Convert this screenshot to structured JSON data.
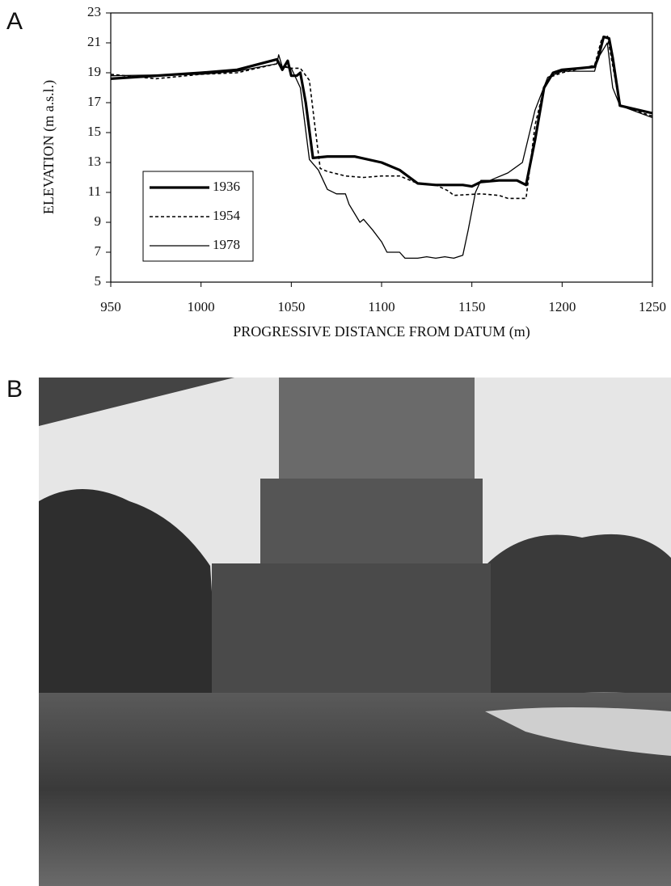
{
  "chart_data": {
    "type": "line",
    "panel_label": "A",
    "xlabel": "PROGRESSIVE DISTANCE FROM DATUM (m)",
    "ylabel": "ELEVATION (m a.s.l.)",
    "xlim": [
      950,
      1250
    ],
    "ylim": [
      5,
      23
    ],
    "xticks": [
      950,
      1000,
      1050,
      1100,
      1150,
      1200,
      1250
    ],
    "yticks": [
      5,
      7,
      9,
      11,
      13,
      15,
      17,
      19,
      21,
      23
    ],
    "legend": "lower left",
    "series": [
      {
        "name": "1936",
        "color": "#000000",
        "style": "thick",
        "x": [
          950,
          1000,
          1020,
          1042,
          1045,
          1048,
          1050,
          1053,
          1055,
          1058,
          1062,
          1070,
          1085,
          1100,
          1110,
          1120,
          1130,
          1145,
          1150,
          1155,
          1165,
          1175,
          1180,
          1185,
          1190,
          1195,
          1200,
          1210,
          1218,
          1220,
          1223,
          1226,
          1228,
          1232,
          1250
        ],
        "values": [
          18.6,
          19.0,
          19.2,
          19.9,
          19.2,
          19.8,
          18.8,
          18.8,
          19.0,
          17.0,
          13.3,
          13.4,
          13.4,
          13.0,
          12.5,
          11.6,
          11.5,
          11.5,
          11.4,
          11.7,
          11.8,
          11.8,
          11.5,
          14.5,
          18.0,
          19.0,
          19.2,
          19.3,
          19.4,
          20.0,
          21.4,
          21.3,
          20.0,
          16.8,
          16.3
        ]
      },
      {
        "name": "1954",
        "color": "#000000",
        "style": "dashed",
        "x": [
          950,
          975,
          1000,
          1020,
          1042,
          1050,
          1055,
          1060,
          1063,
          1066,
          1070,
          1080,
          1090,
          1100,
          1110,
          1120,
          1130,
          1137,
          1140,
          1155,
          1165,
          1170,
          1180,
          1182,
          1185,
          1190,
          1193,
          1200,
          1218,
          1222,
          1225,
          1232,
          1250
        ],
        "values": [
          18.9,
          18.6,
          18.9,
          19.0,
          19.6,
          19.3,
          19.3,
          18.5,
          15.5,
          12.6,
          12.4,
          12.1,
          12.0,
          12.1,
          12.1,
          11.6,
          11.5,
          11.1,
          10.8,
          10.9,
          10.8,
          10.6,
          10.6,
          12.5,
          15.5,
          18.0,
          18.7,
          19.0,
          19.5,
          21.3,
          21.5,
          16.8,
          16.1
        ]
      },
      {
        "name": "1978",
        "color": "#000000",
        "style": "thin",
        "x": [
          950,
          1000,
          1020,
          1042,
          1043,
          1045,
          1050,
          1055,
          1060,
          1065,
          1070,
          1075,
          1080,
          1082,
          1088,
          1090,
          1095,
          1100,
          1103,
          1110,
          1113,
          1120,
          1125,
          1130,
          1135,
          1140,
          1145,
          1148,
          1152,
          1155,
          1160,
          1170,
          1178,
          1185,
          1192,
          1200,
          1218,
          1220,
          1225,
          1228,
          1232,
          1250
        ],
        "values": [
          18.8,
          18.9,
          19.1,
          19.6,
          20.2,
          19.4,
          19.3,
          18.0,
          13.2,
          12.5,
          11.2,
          10.9,
          10.9,
          10.2,
          9.0,
          9.2,
          8.5,
          7.7,
          7.0,
          7.0,
          6.6,
          6.6,
          6.7,
          6.6,
          6.7,
          6.6,
          6.8,
          8.5,
          11.0,
          11.8,
          11.8,
          12.3,
          13.0,
          16.5,
          18.7,
          19.1,
          19.1,
          20.0,
          21.0,
          18.0,
          16.8,
          16.0
        ]
      }
    ]
  },
  "photo": {
    "panel_label": "B"
  }
}
